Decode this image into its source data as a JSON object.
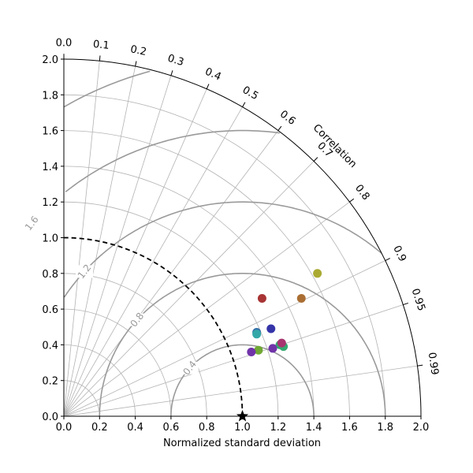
{
  "chart_data": {
    "type": "scatter",
    "subtype": "taylor-diagram",
    "xlabel": "Normalized standard deviation",
    "ylabel": "",
    "angle_label": "Correlation",
    "std_range": [
      0,
      2.0
    ],
    "std_ticks": [
      "0.0",
      "0.2",
      "0.4",
      "0.6",
      "0.8",
      "1.0",
      "1.2",
      "1.4",
      "1.6",
      "1.8",
      "2.0"
    ],
    "correlation_ticks": [
      "0.0",
      "0.1",
      "0.2",
      "0.3",
      "0.4",
      "0.5",
      "0.6",
      "0.7",
      "0.8",
      "0.9",
      "0.95",
      "0.99"
    ],
    "rms_contour_labels": [
      "0.4",
      "0.8",
      "1.2",
      "1.6",
      "2.0"
    ],
    "reference": {
      "std": 1.0,
      "marker": "star"
    },
    "grid": true,
    "points": [
      {
        "x": 1.42,
        "y": 0.8,
        "color": "#aaaa33"
      },
      {
        "x": 1.33,
        "y": 0.66,
        "color": "#aa6e33"
      },
      {
        "x": 1.11,
        "y": 0.66,
        "color": "#a83434"
      },
      {
        "x": 1.16,
        "y": 0.49,
        "color": "#3434a8"
      },
      {
        "x": 1.08,
        "y": 0.47,
        "color": "#3470a8"
      },
      {
        "x": 1.08,
        "y": 0.46,
        "color": "#34a8a8"
      },
      {
        "x": 1.21,
        "y": 0.4,
        "color": "#34a870"
      },
      {
        "x": 1.23,
        "y": 0.39,
        "color": "#34a870"
      },
      {
        "x": 1.22,
        "y": 0.41,
        "color": "#a83470"
      },
      {
        "x": 1.17,
        "y": 0.38,
        "color": "#7034a8"
      },
      {
        "x": 1.09,
        "y": 0.37,
        "color": "#70a834"
      },
      {
        "x": 1.05,
        "y": 0.36,
        "color": "#7034a8"
      }
    ]
  }
}
